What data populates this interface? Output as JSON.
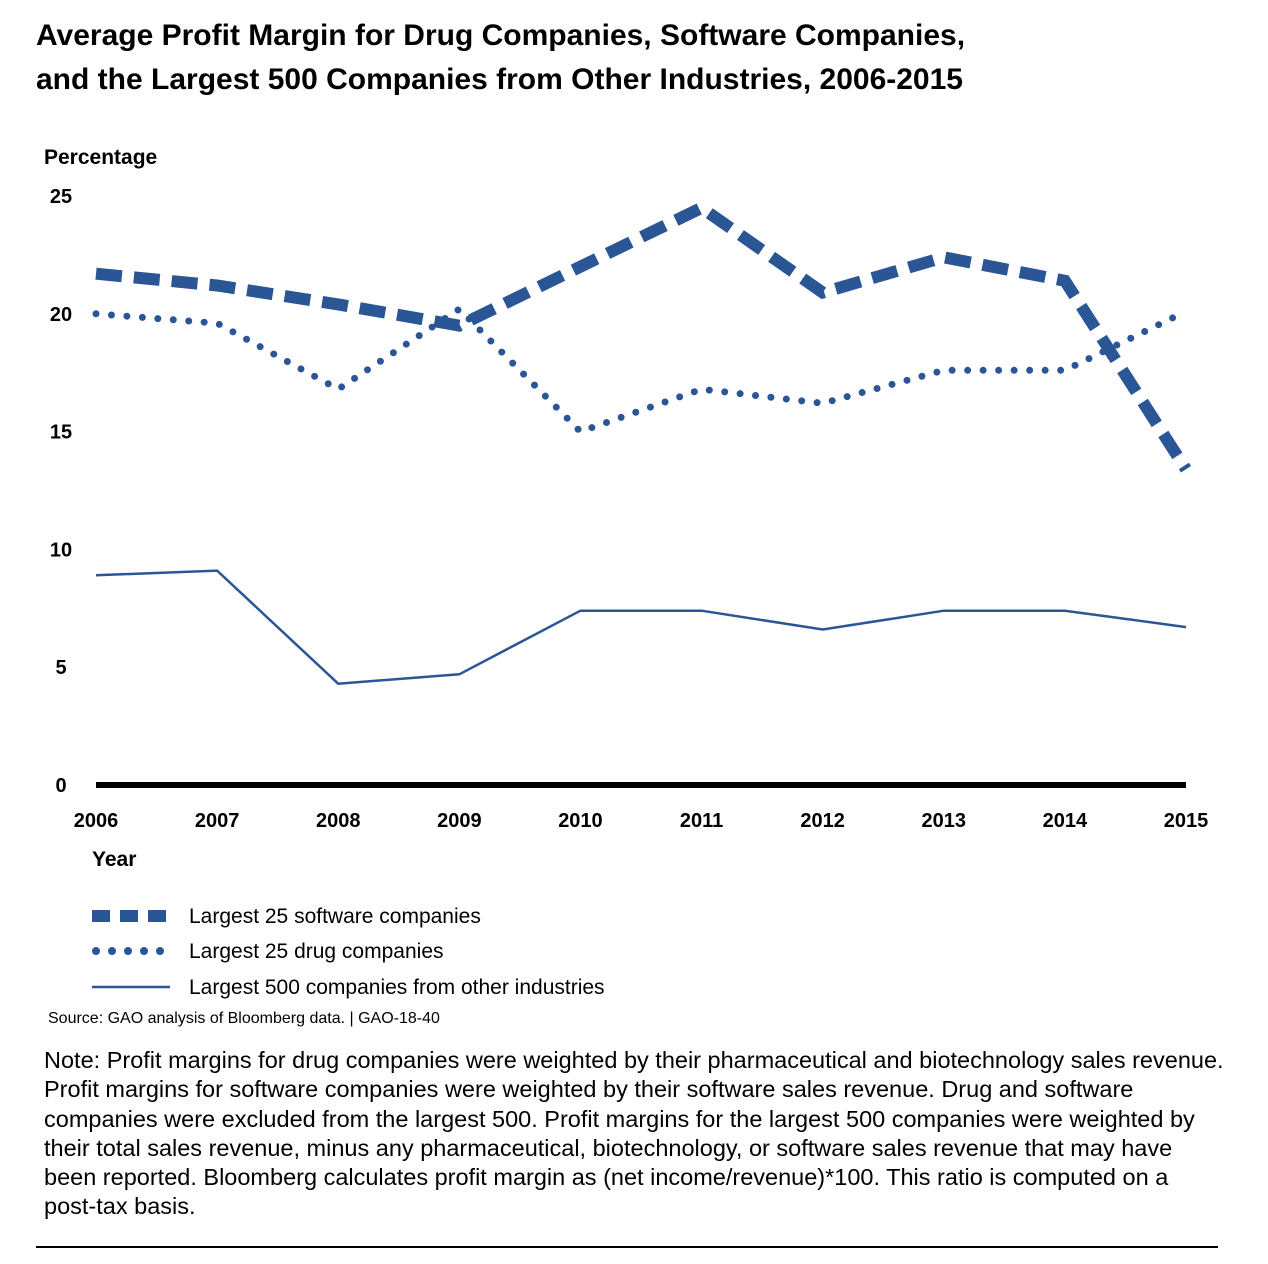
{
  "chart_data": {
    "type": "line",
    "title_line1": "Average Profit Margin for Drug Companies, Software Companies,",
    "title_line2": "and the Largest 500 Companies from Other Industries, 2006-2015",
    "ylabel": "Percentage",
    "xlabel": "Year",
    "ylim": [
      0,
      25
    ],
    "yticks": [
      "0",
      "5",
      "10",
      "15",
      "20",
      "25"
    ],
    "x": [
      "2006",
      "2007",
      "2008",
      "2009",
      "2010",
      "2011",
      "2012",
      "2013",
      "2014",
      "2015"
    ],
    "grid": false,
    "legend_position": "bottom-left",
    "series": [
      {
        "name": "Largest 25 software companies",
        "style": "dashed",
        "color": "#2a5696",
        "values": [
          21.7,
          21.2,
          20.4,
          19.5,
          22.0,
          24.5,
          20.9,
          22.4,
          21.4,
          13.4
        ]
      },
      {
        "name": "Largest 25 drug companies",
        "style": "dotted",
        "color": "#2a5696",
        "values": [
          20.0,
          19.6,
          16.8,
          20.2,
          15.0,
          16.8,
          16.2,
          17.6,
          17.6,
          20.1
        ]
      },
      {
        "name": "Largest 500 companies from other industries",
        "style": "solid",
        "color": "#2a5696",
        "values": [
          8.9,
          9.1,
          4.3,
          4.7,
          7.4,
          7.4,
          6.6,
          7.4,
          7.4,
          6.7
        ]
      }
    ],
    "source": "Source: GAO analysis of Bloomberg data.  |  GAO-18-40",
    "note": "Note: Profit margins for drug companies were weighted by their pharmaceutical and biotechnology sales revenue. Profit margins for software companies were weighted by their software sales revenue. Drug and software companies were excluded from the largest 500. Profit margins for the largest 500 companies were weighted by their total sales revenue, minus any pharmaceutical, biotechnology, or software sales revenue that may have been reported. Bloomberg calculates profit margin as (net income/revenue)*100. This ratio is computed on a post-tax basis."
  }
}
